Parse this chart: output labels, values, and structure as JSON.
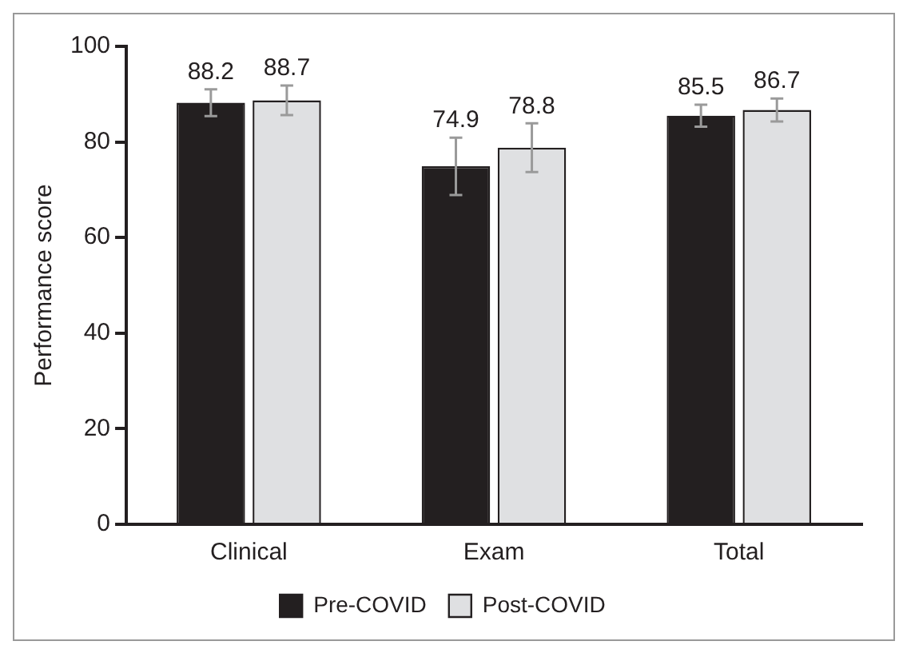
{
  "chart_data": {
    "type": "bar",
    "ylabel": "Performance score",
    "categories": [
      "Clinical",
      "Exam",
      "Total"
    ],
    "series": [
      {
        "name": "Pre-COVID",
        "color": "#231f20",
        "values": [
          88.2,
          74.9,
          85.5
        ],
        "errors": [
          2.8,
          6,
          2.3
        ]
      },
      {
        "name": "Post-COVID",
        "color": "#dfe0e2",
        "values": [
          88.7,
          78.8,
          86.7
        ],
        "errors": [
          3.1,
          5.1,
          2.4
        ]
      }
    ],
    "ylim": [
      0,
      100
    ],
    "yticks": [
      0,
      20,
      40,
      60,
      80,
      100
    ],
    "grid": false,
    "legend": "bottom",
    "data_labels": true
  }
}
